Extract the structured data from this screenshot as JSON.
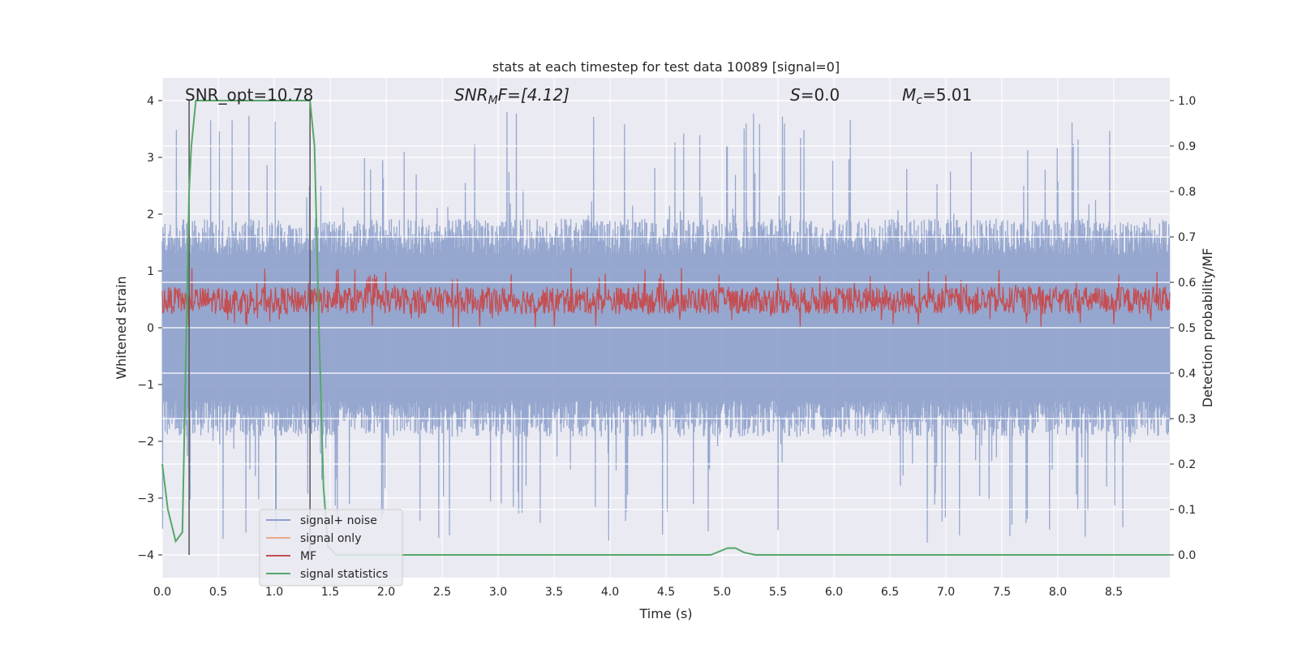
{
  "chart_data": {
    "type": "line",
    "title": "stats at each timestep for test data 10089 [signal=0]",
    "xlabel": "Time (s)",
    "ylabel": "Whitened strain",
    "ylabel_right": "Detection probability/MF",
    "xlim": [
      0.0,
      9.0
    ],
    "ylim": [
      -4.4,
      4.4
    ],
    "ylim_right": [
      -0.05,
      1.05
    ],
    "x_ticks": [
      "0.0",
      "0.5",
      "1.0",
      "1.5",
      "2.0",
      "2.5",
      "3.0",
      "3.5",
      "4.0",
      "4.5",
      "5.0",
      "5.5",
      "6.0",
      "6.5",
      "7.0",
      "7.5",
      "8.0",
      "8.5"
    ],
    "x_tick_values": [
      0.0,
      0.5,
      1.0,
      1.5,
      2.0,
      2.5,
      3.0,
      3.5,
      4.0,
      4.5,
      5.0,
      5.5,
      6.0,
      6.5,
      7.0,
      7.5,
      8.0,
      8.5
    ],
    "y_ticks": [
      "−4",
      "−3",
      "−2",
      "−1",
      "0",
      "1",
      "2",
      "3",
      "4"
    ],
    "y_tick_values": [
      -4,
      -3,
      -2,
      -1,
      0,
      1,
      2,
      3,
      4
    ],
    "y_right_ticks": [
      "0.0",
      "0.1",
      "0.2",
      "0.3",
      "0.4",
      "0.5",
      "0.6",
      "0.7",
      "0.8",
      "0.9",
      "1.0"
    ],
    "y_right_tick_values": [
      0.0,
      0.1,
      0.2,
      0.3,
      0.4,
      0.5,
      0.6,
      0.7,
      0.8,
      0.9,
      1.0
    ],
    "grid": true,
    "legend_position": "lower-left",
    "annotations": {
      "snr_opt": "SNR_opt=10.78",
      "snr_mf_symbol": "SNR",
      "snr_mf_sub": "M",
      "snr_mf_rest": "F=[4.12]",
      "s_symbol": "S",
      "s_rest": "=0.0",
      "mc_symbol": "M",
      "mc_sub": "c",
      "mc_rest": "=5.01"
    },
    "vertical_lines_x": [
      0.24,
      1.32
    ],
    "series": [
      {
        "name": "signal+ noise",
        "color": "#8da0cb",
        "kind": "noise",
        "axis": "left",
        "amplitude_typical": 1.6,
        "amplitude_peak": 3.8
      },
      {
        "name": "signal only",
        "color": "#e8a88a",
        "kind": "flat",
        "axis": "left",
        "values": [
          0
        ]
      },
      {
        "name": "MF",
        "color": "#c44e52",
        "kind": "noise_band",
        "axis": "right",
        "range": [
          0.5,
          0.62
        ]
      },
      {
        "name": "signal statistics",
        "color": "#55a868",
        "kind": "line",
        "axis": "right",
        "x": [
          0.0,
          0.05,
          0.1,
          0.12,
          0.18,
          0.24,
          0.26,
          0.3,
          0.33,
          0.36,
          1.0,
          1.3,
          1.32,
          1.36,
          1.4,
          1.44,
          1.48,
          1.55,
          2.0,
          3.0,
          4.0,
          4.9,
          5.0,
          5.05,
          5.12,
          5.2,
          5.3,
          5.4,
          6.0,
          7.0,
          8.0,
          9.0
        ],
        "y": [
          0.2,
          0.1,
          0.05,
          0.03,
          0.05,
          0.8,
          0.9,
          1.0,
          1.0,
          1.0,
          1.0,
          1.0,
          1.0,
          0.9,
          0.5,
          0.15,
          0.02,
          0.0,
          0.0,
          0.0,
          0.0,
          0.0,
          0.01,
          0.015,
          0.015,
          0.005,
          0.0,
          0.0,
          0.0,
          0.0,
          0.0,
          0.0
        ]
      }
    ]
  }
}
